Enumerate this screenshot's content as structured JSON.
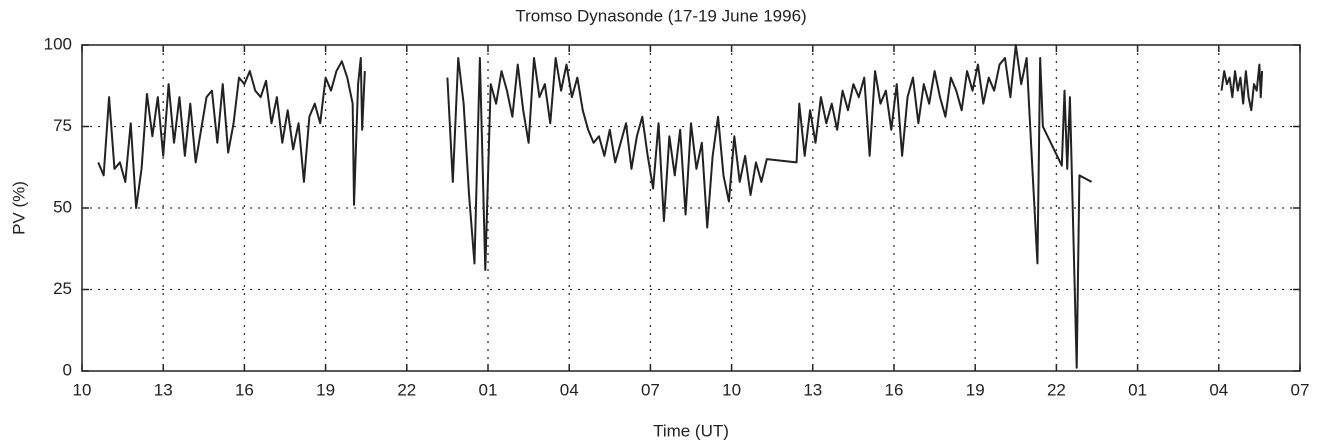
{
  "chart_data": {
    "type": "line",
    "title": "Tromso Dynasonde (17-19 June 1996)",
    "xlabel": "Time (UT)",
    "ylabel": "PV (%)",
    "xlim": [
      10,
      55
    ],
    "ylim": [
      0,
      100
    ],
    "xticks": [
      10,
      13,
      16,
      19,
      22,
      {
        "value": 25,
        "label": "01"
      },
      {
        "value": 28,
        "label": "04"
      },
      {
        "value": 31,
        "label": "07"
      },
      {
        "value": 34,
        "label": "10"
      },
      {
        "value": 37,
        "label": "13"
      },
      {
        "value": 40,
        "label": "16"
      },
      {
        "value": 43,
        "label": "19"
      },
      {
        "value": 46,
        "label": "22"
      },
      {
        "value": 49,
        "label": "01"
      },
      {
        "value": 52,
        "label": "04"
      },
      {
        "value": 55,
        "label": "07"
      }
    ],
    "yticks": [
      0,
      25,
      50,
      75,
      100
    ],
    "grid": true,
    "x": [
      10.6,
      10.8,
      11.0,
      11.2,
      11.4,
      11.6,
      11.8,
      12.0,
      12.2,
      12.4,
      12.6,
      12.8,
      13.0,
      13.2,
      13.4,
      13.6,
      13.8,
      14.0,
      14.2,
      14.4,
      14.6,
      14.8,
      15.0,
      15.2,
      15.4,
      15.6,
      15.8,
      16.0,
      16.2,
      16.4,
      16.6,
      16.8,
      17.0,
      17.2,
      17.4,
      17.6,
      17.8,
      18.0,
      18.2,
      18.4,
      18.6,
      18.8,
      19.0,
      19.2,
      19.4,
      19.6,
      19.8,
      20.0,
      20.05,
      20.2,
      20.3,
      20.35,
      20.45,
      22,
      23.5,
      23.7,
      23.9,
      24.1,
      24.3,
      24.5,
      24.7,
      24.9,
      25.1,
      25.3,
      25.5,
      25.7,
      25.9,
      26.1,
      26.3,
      26.5,
      26.7,
      26.9,
      27.1,
      27.3,
      27.5,
      27.7,
      27.9,
      28.1,
      28.3,
      28.5,
      28.7,
      28.9,
      29.1,
      29.3,
      29.5,
      29.7,
      29.9,
      30.1,
      30.3,
      30.5,
      30.7,
      30.9,
      31.1,
      31.3,
      31.5,
      31.7,
      31.9,
      32.1,
      32.3,
      32.5,
      32.7,
      32.9,
      33.1,
      33.3,
      33.5,
      33.7,
      33.9,
      34.1,
      34.3,
      34.5,
      34.7,
      34.9,
      35.1,
      35.3,
      36.4,
      36.5,
      36.7,
      36.9,
      37.1,
      37.3,
      37.5,
      37.7,
      37.9,
      38.1,
      38.3,
      38.5,
      38.7,
      38.9,
      39.1,
      39.3,
      39.5,
      39.7,
      39.9,
      40.1,
      40.3,
      40.5,
      40.7,
      40.9,
      41.1,
      41.3,
      41.5,
      41.7,
      41.9,
      42.1,
      42.3,
      42.5,
      42.7,
      42.9,
      43.1,
      43.3,
      43.5,
      43.7,
      43.9,
      44.1,
      44.3,
      44.5,
      44.7,
      44.9,
      45.1,
      45.3,
      45.4,
      45.5,
      46.2,
      46.3,
      46.4,
      46.5,
      46.75,
      46.85,
      47.3,
      50,
      52.1,
      52.2,
      52.3,
      52.4,
      52.5,
      52.6,
      52.7,
      52.8,
      52.9,
      53.0,
      53.1,
      53.2,
      53.3,
      53.4,
      53.5,
      53.55,
      53.6
    ],
    "series": [
      {
        "name": "PV",
        "color": "#222222",
        "values": [
          64,
          60,
          84,
          62,
          64,
          58,
          76,
          50,
          62,
          85,
          72,
          84,
          66,
          88,
          70,
          84,
          66,
          82,
          64,
          74,
          84,
          86,
          70,
          88,
          67,
          76,
          90,
          88,
          92,
          86,
          84,
          89,
          76,
          84,
          70,
          80,
          68,
          76,
          58,
          78,
          82,
          76,
          90,
          86,
          92,
          95,
          90,
          82,
          51,
          88,
          96,
          74,
          92,
          null,
          90,
          58,
          96,
          82,
          54,
          33,
          96,
          31,
          88,
          82,
          92,
          86,
          78,
          94,
          80,
          70,
          96,
          84,
          88,
          76,
          96,
          86,
          94,
          84,
          90,
          80,
          74,
          70,
          72,
          66,
          74,
          64,
          70,
          76,
          62,
          72,
          78,
          66,
          56,
          76,
          46,
          72,
          60,
          74,
          48,
          76,
          62,
          70,
          44,
          66,
          78,
          60,
          52,
          72,
          58,
          66,
          54,
          64,
          58,
          65,
          64,
          82,
          66,
          80,
          70,
          84,
          76,
          82,
          74,
          86,
          80,
          88,
          84,
          90,
          66,
          92,
          82,
          86,
          74,
          88,
          66,
          84,
          90,
          76,
          88,
          82,
          92,
          84,
          78,
          90,
          86,
          80,
          92,
          86,
          94,
          82,
          90,
          86,
          94,
          96,
          84,
          100,
          88,
          96,
          64,
          33,
          96,
          75,
          63,
          86,
          62,
          84,
          1,
          60,
          58,
          null,
          86,
          92,
          88,
          90,
          84,
          92,
          86,
          90,
          82,
          92,
          84,
          80,
          88,
          86,
          94,
          84,
          92
        ]
      }
    ]
  }
}
